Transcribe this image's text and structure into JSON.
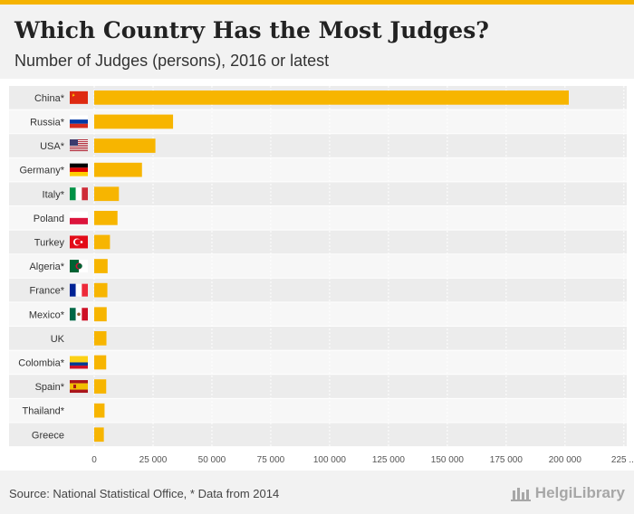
{
  "header": {
    "title": "Which Country Has the Most Judges?",
    "subtitle": "Number of Judges (persons), 2016 or latest"
  },
  "footer": {
    "source": "Source: National Statistical Office, * Data from 2014",
    "brand": "HelgiLibrary"
  },
  "colors": {
    "bar": "#f7b500",
    "band_dark": "#ececec",
    "band_light": "#f7f7f7",
    "accent": "#f5b301"
  },
  "chart_data": {
    "type": "bar",
    "orientation": "horizontal",
    "title": "Which Country Has the Most Judges?",
    "subtitle": "Number of Judges (persons), 2016 or latest",
    "xlabel": "",
    "ylabel": "",
    "xlim": [
      0,
      225000
    ],
    "x_ticks": [
      "0",
      "25 000",
      "50 000",
      "75 000",
      "100 000",
      "125 000",
      "150 000",
      "175 000",
      "200 000",
      "225 ..."
    ],
    "grid": true,
    "categories": [
      {
        "label": "China*",
        "flag": "china",
        "value": 201600
      },
      {
        "label": "Russia*",
        "flag": "russia",
        "value": 33500
      },
      {
        "label": "USA*",
        "flag": "usa",
        "value": 26000
      },
      {
        "label": "Germany*",
        "flag": "germany",
        "value": 20300
      },
      {
        "label": "Italy*",
        "flag": "italy",
        "value": 10500
      },
      {
        "label": "Poland",
        "flag": "poland",
        "value": 9900
      },
      {
        "label": "Turkey",
        "flag": "turkey",
        "value": 6700
      },
      {
        "label": "Algeria*",
        "flag": "algeria",
        "value": 5700
      },
      {
        "label": "France*",
        "flag": "france",
        "value": 5600
      },
      {
        "label": "Mexico*",
        "flag": "mexico",
        "value": 5300
      },
      {
        "label": "UK",
        "flag": "",
        "value": 5200
      },
      {
        "label": "Colombia*",
        "flag": "colombia",
        "value": 5100
      },
      {
        "label": "Spain*",
        "flag": "spain",
        "value": 5100
      },
      {
        "label": "Thailand*",
        "flag": "",
        "value": 4400
      },
      {
        "label": "Greece",
        "flag": "",
        "value": 4100
      }
    ]
  }
}
